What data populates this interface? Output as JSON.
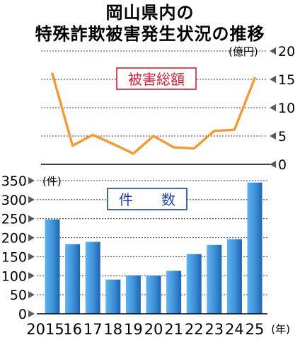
{
  "title_line1": "岡山県内の",
  "title_line2": "特殊詐欺被害発生状況の推移",
  "chart_data": [
    {
      "type": "line",
      "label": "被害総額",
      "unit": "(億円)",
      "x": [
        "2015",
        "16",
        "17",
        "18",
        "19",
        "20",
        "21",
        "22",
        "23",
        "24",
        "25"
      ],
      "values": [
        16,
        3.3,
        5.2,
        3.6,
        1.9,
        5,
        3,
        2.8,
        5.9,
        6.1,
        15.2
      ],
      "yticks": [
        0,
        5,
        10,
        15,
        20
      ],
      "ylim": [
        0,
        20
      ],
      "grid": true,
      "color": "#f29a36"
    },
    {
      "type": "bar",
      "label": "件　　数",
      "unit": "(件)",
      "categories": [
        "2015",
        "16",
        "17",
        "18",
        "19",
        "20",
        "21",
        "22",
        "23",
        "24",
        "25"
      ],
      "values": [
        248,
        183,
        189,
        90,
        101,
        100,
        113,
        157,
        181,
        196,
        345
      ],
      "yticks": [
        0,
        50,
        100,
        150,
        200,
        250,
        300,
        350
      ],
      "ylim": [
        0,
        350
      ],
      "grid": true,
      "xunit": "(年)",
      "color": "#3a8fd6"
    }
  ]
}
